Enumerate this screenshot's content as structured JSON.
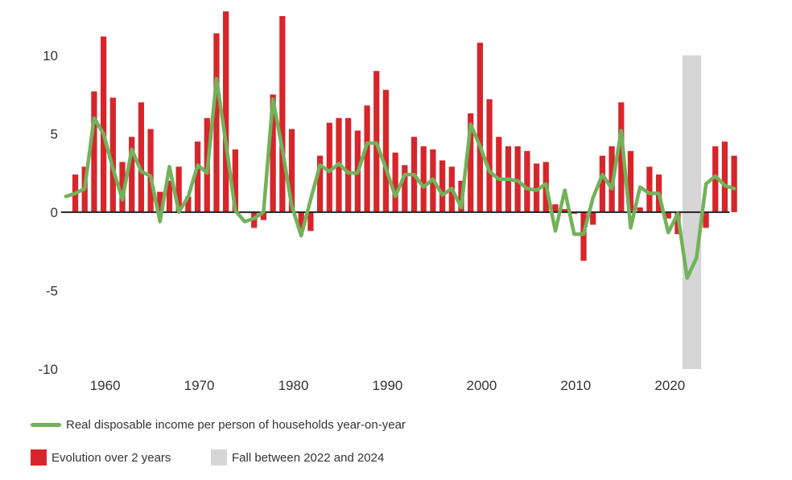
{
  "chart_data": {
    "type": "bar",
    "title": "",
    "xlabel": "",
    "ylabel": "",
    "ylim": [
      -10,
      12.5
    ],
    "xlim": [
      1955.5,
      2027.5
    ],
    "yticks": [
      10,
      5,
      0,
      -5,
      -10
    ],
    "ytick_labels": [
      "10",
      "5",
      "0",
      "-5",
      "-10"
    ],
    "xticks": [
      1960,
      1970,
      1980,
      1990,
      2000,
      2010,
      2020
    ],
    "xtick_labels": [
      "1960",
      "1970",
      "1980",
      "1990",
      "2000",
      "2010",
      "2020"
    ],
    "colors": {
      "bars": "#d7262b",
      "line": "#72b25a",
      "highlight": "#d6d6d6",
      "zero": "#222222"
    },
    "highlight_span": {
      "label": "Fall between 2022 and 2024",
      "x_from": 2022,
      "x_to": 2024,
      "y_from": -10,
      "y_to": 10
    },
    "legend": [
      {
        "label": "Real disposable income per person of households year-on-year",
        "kind": "line"
      },
      {
        "label": "Evolution over 2 years",
        "kind": "bar"
      },
      {
        "label": "Fall between 2022 and 2024",
        "kind": "span"
      }
    ],
    "series": [
      {
        "name": "Evolution over 2 years",
        "kind": "bar",
        "x": [
          1957,
          1958,
          1959,
          1960,
          1961,
          1962,
          1963,
          1964,
          1965,
          1966,
          1967,
          1968,
          1969,
          1970,
          1971,
          1972,
          1973,
          1974,
          1975,
          1976,
          1977,
          1978,
          1979,
          1980,
          1981,
          1982,
          1983,
          1984,
          1985,
          1986,
          1987,
          1988,
          1989,
          1990,
          1991,
          1992,
          1993,
          1994,
          1995,
          1996,
          1997,
          1998,
          1999,
          2000,
          2001,
          2002,
          2003,
          2004,
          2005,
          2006,
          2007,
          2008,
          2009,
          2010,
          2011,
          2012,
          2013,
          2014,
          2015,
          2016,
          2017,
          2018,
          2019,
          2020,
          2021,
          2022,
          2023,
          2024,
          2025,
          2026,
          2027
        ],
        "values": [
          2.4,
          2.9,
          7.7,
          11.2,
          7.3,
          3.2,
          4.8,
          7.0,
          5.3,
          1.3,
          2.0,
          2.9,
          1.0,
          4.5,
          6.0,
          11.4,
          12.8,
          4.0,
          0.0,
          -1.0,
          -0.5,
          7.5,
          12.5,
          5.3,
          -1.2,
          -1.2,
          3.6,
          5.7,
          6.0,
          6.0,
          5.2,
          6.8,
          9.0,
          7.8,
          3.8,
          3.0,
          4.8,
          4.2,
          4.0,
          3.3,
          2.9,
          2.0,
          6.3,
          10.8,
          7.2,
          4.8,
          4.2,
          4.2,
          3.9,
          3.1,
          3.2,
          0.5,
          0.2,
          -0.1,
          -3.1,
          -0.8,
          3.6,
          4.2,
          7.0,
          3.9,
          0.3,
          2.9,
          2.4,
          -0.4,
          -1.4,
          0.0,
          0.0,
          -1.0,
          4.2,
          4.5,
          3.6
        ]
      },
      {
        "name": "Real disposable income per person of households year-on-year",
        "kind": "line",
        "x": [
          1956,
          1957,
          1958,
          1959,
          1960,
          1961,
          1962,
          1963,
          1964,
          1965,
          1966,
          1967,
          1968,
          1969,
          1970,
          1971,
          1972,
          1973,
          1974,
          1975,
          1976,
          1977,
          1978,
          1979,
          1980,
          1981,
          1982,
          1983,
          1984,
          1985,
          1986,
          1987,
          1988,
          1989,
          1990,
          1991,
          1992,
          1993,
          1994,
          1995,
          1996,
          1997,
          1998,
          1999,
          2000,
          2001,
          2002,
          2003,
          2004,
          2005,
          2006,
          2007,
          2008,
          2009,
          2010,
          2011,
          2012,
          2013,
          2014,
          2015,
          2016,
          2017,
          2018,
          2019,
          2020,
          2021,
          2022,
          2023,
          2024,
          2025,
          2026,
          2027
        ],
        "values": [
          1.0,
          1.2,
          1.5,
          6.0,
          5.0,
          2.8,
          0.8,
          4.0,
          2.6,
          2.3,
          -0.6,
          2.9,
          0.0,
          1.0,
          3.0,
          2.5,
          8.5,
          4.4,
          0.1,
          -0.6,
          -0.4,
          0.0,
          7.2,
          4.0,
          0.4,
          -1.5,
          0.8,
          3.0,
          2.6,
          3.1,
          2.5,
          2.5,
          4.4,
          4.4,
          2.8,
          1.0,
          2.4,
          2.4,
          1.6,
          2.1,
          1.1,
          1.5,
          0.3,
          5.6,
          4.2,
          2.6,
          2.1,
          2.1,
          2.0,
          1.5,
          1.4,
          1.8,
          -1.2,
          1.4,
          -1.4,
          -1.4,
          0.9,
          2.4,
          1.5,
          5.2,
          -1.0,
          1.6,
          1.2,
          1.2,
          -1.3,
          -0.1,
          -4.2,
          -2.9,
          1.8,
          2.3,
          1.7,
          1.5
        ]
      }
    ]
  }
}
